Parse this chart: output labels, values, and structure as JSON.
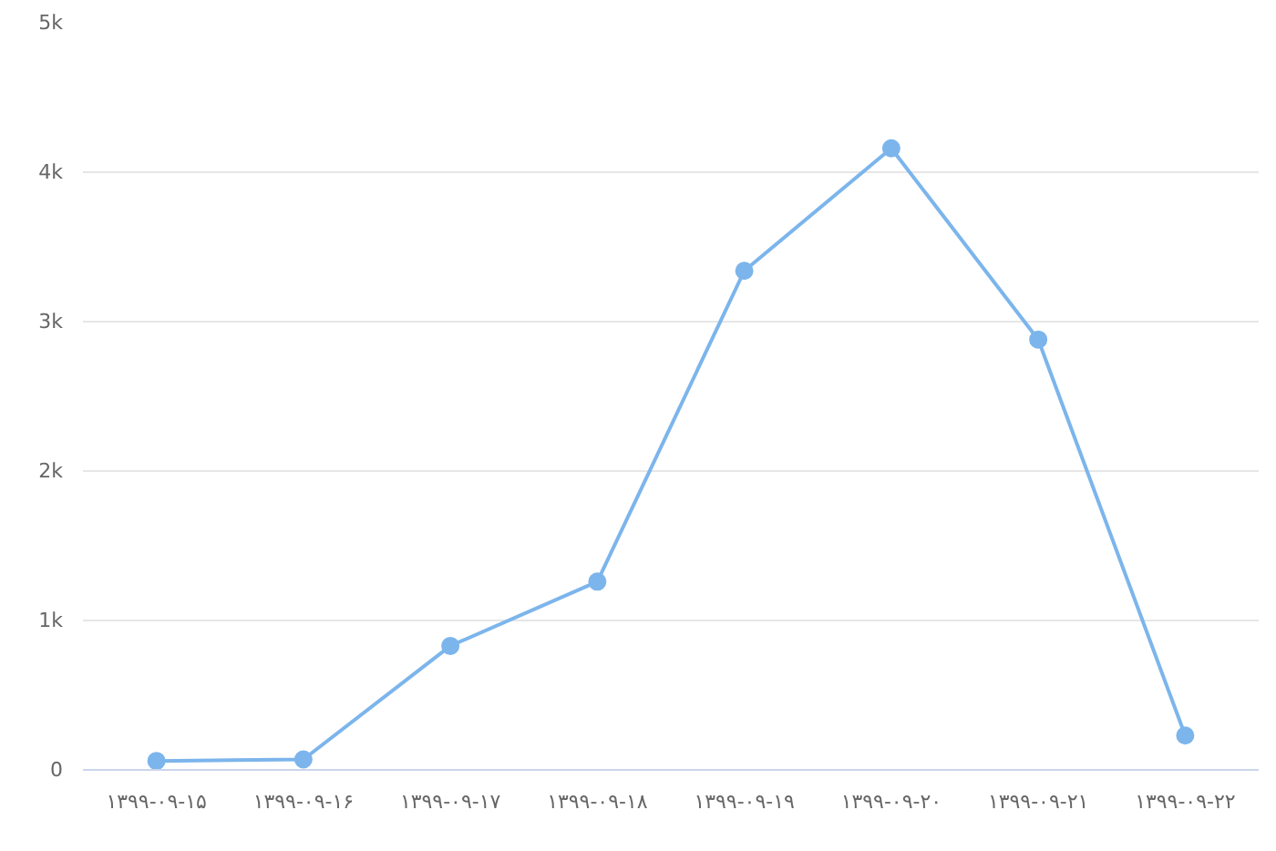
{
  "chart_data": {
    "type": "line",
    "categories": [
      "۱۳۹۹-۰۹-۱۵",
      "۱۳۹۹-۰۹-۱۶",
      "۱۳۹۹-۰۹-۱۷",
      "۱۳۹۹-۰۹-۱۸",
      "۱۳۹۹-۰۹-۱۹",
      "۱۳۹۹-۰۹-۲۰",
      "۱۳۹۹-۰۹-۲۱",
      "۱۳۹۹-۰۹-۲۲"
    ],
    "series": [
      {
        "color": "#7cb5ec",
        "values": [
          60,
          70,
          830,
          1260,
          3340,
          4160,
          2880,
          230
        ]
      }
    ],
    "ylim": [
      0,
      5000
    ],
    "yticks": [
      {
        "value": 0,
        "label": "0"
      },
      {
        "value": 1000,
        "label": "1k"
      },
      {
        "value": 2000,
        "label": "2k"
      },
      {
        "value": 3000,
        "label": "3k"
      },
      {
        "value": 4000,
        "label": "4k"
      },
      {
        "value": 5000,
        "label": "5k"
      }
    ],
    "grid": "y",
    "marker": "circle",
    "line_style": "solid"
  }
}
